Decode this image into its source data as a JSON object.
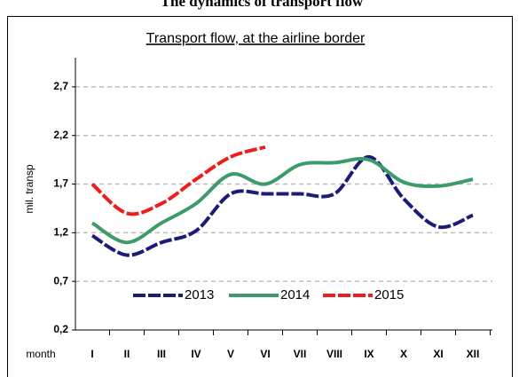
{
  "chart_data": {
    "type": "line",
    "page_title": "The dynamics of transport flow",
    "title": "Transport flow, at the airline border",
    "ylabel": "mil. transp",
    "xlabel": "month",
    "categories": [
      "I",
      "II",
      "III",
      "IV",
      "V",
      "VI",
      "VII",
      "VIII",
      "IX",
      "X",
      "XI",
      "XII"
    ],
    "series": [
      {
        "name": "2013",
        "color": "#1c1c78",
        "values": [
          1.17,
          0.97,
          1.1,
          1.22,
          1.6,
          1.6,
          1.6,
          1.6,
          1.98,
          1.55,
          1.26,
          1.38
        ]
      },
      {
        "name": "2014",
        "color": "#3d9a6b",
        "values": [
          1.3,
          1.1,
          1.3,
          1.5,
          1.8,
          1.7,
          1.9,
          1.92,
          1.95,
          1.72,
          1.68,
          1.75
        ]
      },
      {
        "name": "2015",
        "color": "#ee1c1c",
        "values": [
          1.7,
          1.4,
          1.5,
          1.75,
          1.98,
          2.08,
          null,
          null,
          null,
          null,
          null,
          null
        ]
      }
    ],
    "ylim": [
      0.2,
      3.0
    ],
    "yticks": [
      {
        "value": 0.2,
        "label": "0,2"
      },
      {
        "value": 0.7,
        "label": "0,7"
      },
      {
        "value": 1.2,
        "label": "1,2"
      },
      {
        "value": 1.7,
        "label": "1,7"
      },
      {
        "value": 2.2,
        "label": "2,2"
      },
      {
        "value": 2.7,
        "label": "2,7"
      }
    ],
    "grid": true,
    "legend": "bottom"
  }
}
